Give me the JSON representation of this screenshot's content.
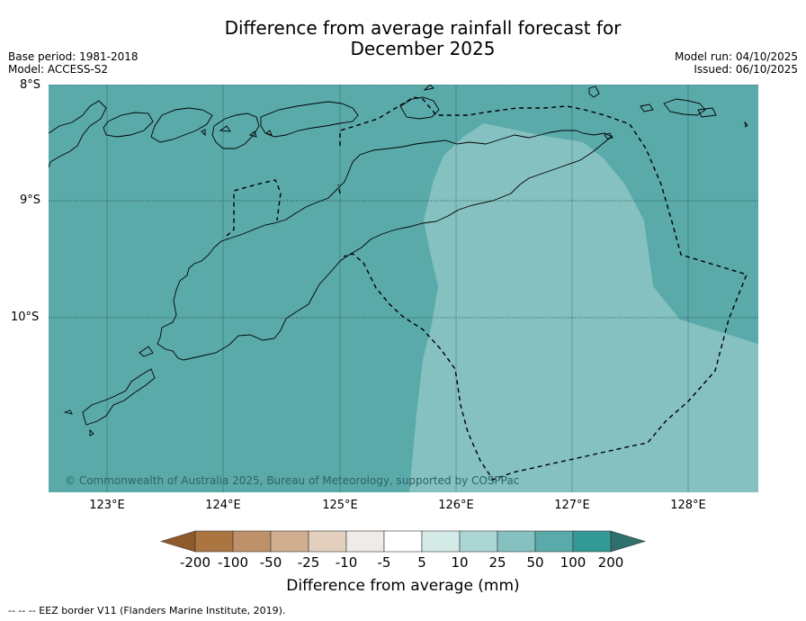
{
  "header": {
    "title_line1": "Difference from average rainfall forecast for",
    "title_line2": "December 2025",
    "base_period": "Base period: 1981-2018",
    "model": "Model: ACCESS-S2",
    "model_run": "Model run: 04/10/2025",
    "issued": "Issued: 06/10/2025"
  },
  "map": {
    "lat_labels": [
      "8°S",
      "9°S",
      "10°S"
    ],
    "lon_labels": [
      "123°E",
      "124°E",
      "125°E",
      "126°E",
      "127°E",
      "128°E"
    ],
    "copyright": "© Commonwealth of Australia 2025, Bureau of Meteorology, supported by COSPPac",
    "colors": {
      "fill_50_100": "#5aaaaa",
      "fill_25_50": "#84c1c0",
      "coast": "#000000"
    }
  },
  "colorbar": {
    "title": "Difference from average (mm)",
    "ticks": [
      "-200",
      "-100",
      "-50",
      "-25",
      "-10",
      "-5",
      "5",
      "10",
      "25",
      "50",
      "100",
      "200"
    ],
    "colors": [
      "#8f5a2a",
      "#ab7542",
      "#bf916a",
      "#d0af91",
      "#e2cfbd",
      "#eeebe8",
      "#ffffff",
      "#d4ebe8",
      "#acd6d4",
      "#84c1c0",
      "#5aaaaa",
      "#339a98",
      "#2f6f6c"
    ]
  },
  "footer": {
    "legend": "--  --  -- EEZ border V11 (Flanders Marine Institute, 2019)."
  }
}
